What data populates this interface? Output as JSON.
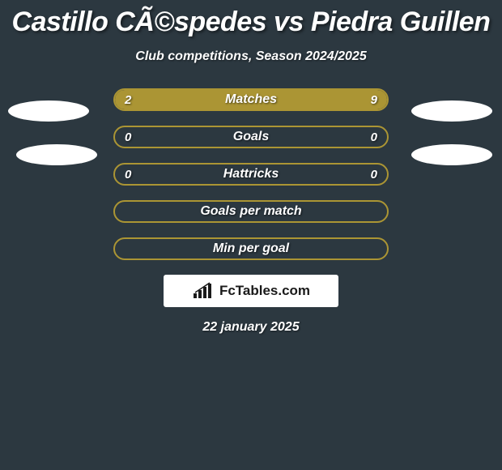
{
  "title": "Castillo CÃ©spedes vs Piedra Guillen",
  "subtitle": "Club competitions, Season 2024/2025",
  "date": "22 january 2025",
  "logo_text": "FcTables.com",
  "background_color": "#2c3840",
  "accent_color": "#ab9534",
  "text_color": "#ffffff",
  "ellipse_color": "#ffffff",
  "logo_bg": "#ffffff",
  "logo_text_color": "#1a1a1a",
  "rows": [
    {
      "label": "Matches",
      "left_val": "2",
      "right_val": "9",
      "left_pct": 18,
      "right_pct": 82,
      "show_vals": true
    },
    {
      "label": "Goals",
      "left_val": "0",
      "right_val": "0",
      "left_pct": 0,
      "right_pct": 0,
      "show_vals": true
    },
    {
      "label": "Hattricks",
      "left_val": "0",
      "right_val": "0",
      "left_pct": 0,
      "right_pct": 0,
      "show_vals": true
    },
    {
      "label": "Goals per match",
      "left_val": "",
      "right_val": "",
      "left_pct": 0,
      "right_pct": 0,
      "show_vals": false
    },
    {
      "label": "Min per goal",
      "left_val": "",
      "right_val": "",
      "left_pct": 0,
      "right_pct": 0,
      "show_vals": false
    }
  ],
  "ellipses": {
    "left": [
      true,
      true
    ],
    "right": [
      true,
      true
    ]
  }
}
